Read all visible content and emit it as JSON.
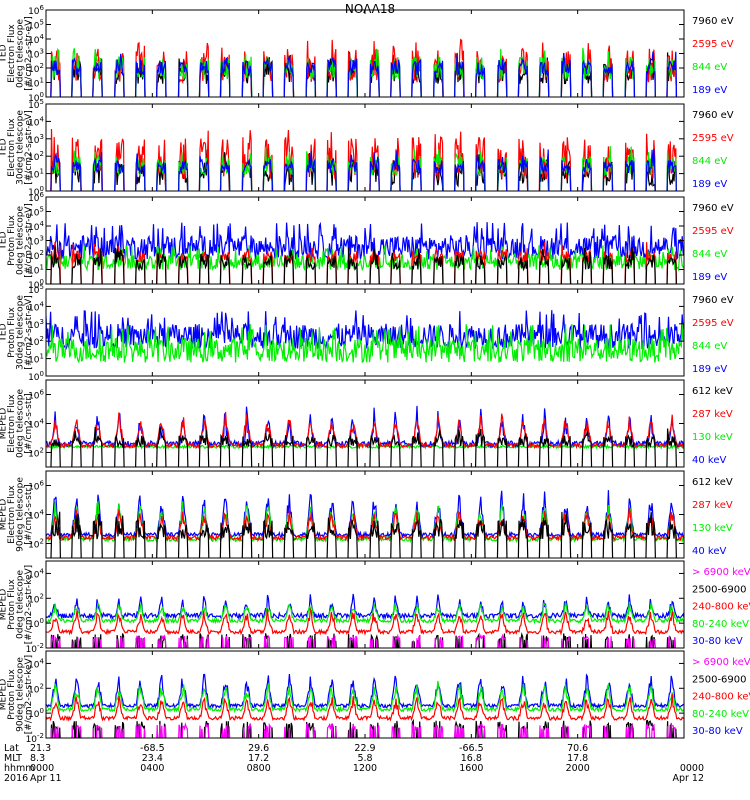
{
  "title": "NOAA18",
  "colors": {
    "black": "#000000",
    "red": "#ff0000",
    "green": "#00ee00",
    "blue": "#0000ff",
    "magenta": "#ff00ff",
    "frame": "#000000"
  },
  "chart_data": {
    "type": "line",
    "x_range_hours": [
      0,
      24
    ],
    "x_ticks_hours": [
      0,
      4,
      8,
      12,
      16,
      20,
      24
    ],
    "footer": {
      "row_labels": [
        "Lat",
        "MLT",
        "hhmm",
        "2016"
      ],
      "columns": [
        {
          "hour": 0,
          "values": [
            "21.3",
            "8.3",
            "0000",
            "Apr 11"
          ]
        },
        {
          "hour": 4,
          "values": [
            "-68.5",
            "23.4",
            "0400",
            ""
          ]
        },
        {
          "hour": 8,
          "values": [
            "29.6",
            "17.2",
            "0800",
            ""
          ]
        },
        {
          "hour": 12,
          "values": [
            "22.9",
            "5.8",
            "1200",
            ""
          ]
        },
        {
          "hour": 16,
          "values": [
            "-66.5",
            "16.8",
            "1600",
            ""
          ]
        },
        {
          "hour": 20,
          "values": [
            "70.6",
            "17.8",
            "2000",
            ""
          ]
        },
        {
          "hour": 24,
          "values": [
            "",
            "",
            "0000",
            "Apr 12"
          ]
        }
      ]
    },
    "panels": [
      {
        "ylabel": [
          "TED",
          "Electron Flux",
          "0deg telescope",
          "[#/cm2-s-str-eV]"
        ],
        "ylim_exp": [
          0,
          6
        ],
        "ticks_exp": [
          0,
          1,
          2,
          3,
          4,
          5,
          6
        ],
        "legend": [
          {
            "label": "7960 eV",
            "color": "black"
          },
          {
            "label": "2595 eV",
            "color": "red"
          },
          {
            "label": "844 eV",
            "color": "green"
          },
          {
            "label": "189 eV",
            "color": "blue"
          }
        ],
        "series": [
          {
            "color": "black",
            "base": 0.9,
            "peak": 2.5,
            "mode": "burst"
          },
          {
            "color": "red",
            "base": 1.0,
            "peak": 3.4,
            "mode": "burst"
          },
          {
            "color": "green",
            "base": 1.2,
            "peak": 2.8,
            "mode": "burst"
          },
          {
            "color": "blue",
            "base": 1.5,
            "peak": 2.6,
            "mode": "burst"
          }
        ]
      },
      {
        "ylabel": [
          "TED",
          "Electron Flux",
          "30deg telescope",
          "[#/cm2-s-str-eV]"
        ],
        "ylim_exp": [
          0,
          5
        ],
        "ticks_exp": [
          0,
          1,
          2,
          3,
          4,
          5
        ],
        "legend": [
          {
            "label": "7960 eV",
            "color": "black"
          },
          {
            "label": "2595 eV",
            "color": "red"
          },
          {
            "label": "844 eV",
            "color": "green"
          },
          {
            "label": "189 eV",
            "color": "blue"
          }
        ],
        "series": [
          {
            "color": "black",
            "base": 0.3,
            "peak": 1.8,
            "mode": "burst"
          },
          {
            "color": "red",
            "base": 0.6,
            "peak": 3.1,
            "mode": "burst"
          },
          {
            "color": "green",
            "base": 0.9,
            "peak": 2.0,
            "mode": "burst"
          },
          {
            "color": "blue",
            "base": 1.0,
            "peak": 1.8,
            "mode": "burst"
          }
        ]
      },
      {
        "ylabel": [
          "TED",
          "Proton Flux",
          "0deg telescope",
          "[#/cm2-s-str-eV]"
        ],
        "ylim_exp": [
          0,
          6
        ],
        "ticks_exp": [
          0,
          1,
          2,
          3,
          4,
          5,
          6
        ],
        "legend": [
          {
            "label": "7960 eV",
            "color": "black"
          },
          {
            "label": "2595 eV",
            "color": "red"
          },
          {
            "label": "844 eV",
            "color": "green"
          },
          {
            "label": "189 eV",
            "color": "blue"
          }
        ],
        "series": [
          {
            "color": "blue",
            "base": 2.2,
            "peak": 4.3,
            "mode": "band"
          },
          {
            "color": "green",
            "base": 1.3,
            "peak": 2.7,
            "mode": "band"
          },
          {
            "color": "red",
            "base": 1.5,
            "peak": 2.3,
            "mode": "burst"
          },
          {
            "color": "black",
            "base": 1.0,
            "peak": 2.0,
            "mode": "burst"
          }
        ]
      },
      {
        "ylabel": [
          "TED",
          "Proton Flux",
          "30deg telescope",
          "[#/cm2-s-str-eV]"
        ],
        "ylim_exp": [
          0,
          5
        ],
        "ticks_exp": [
          0,
          1,
          2,
          3,
          4,
          5
        ],
        "legend": [
          {
            "label": "7960 eV",
            "color": "black"
          },
          {
            "label": "2595 eV",
            "color": "red"
          },
          {
            "label": "844 eV",
            "color": "green"
          },
          {
            "label": "189 eV",
            "color": "blue"
          }
        ],
        "series": [
          {
            "color": "blue",
            "base": 2.0,
            "peak": 3.8,
            "mode": "band"
          },
          {
            "color": "green",
            "base": 1.2,
            "peak": 3.0,
            "mode": "band"
          }
        ]
      },
      {
        "ylabel": [
          "MEPED",
          "Electron Flux",
          "0deg telescope",
          "[#/cm2-s-str]"
        ],
        "ylim_exp": [
          1,
          7
        ],
        "ticks_exp": [
          2,
          4,
          6
        ],
        "legend": [
          {
            "label": "612 keV",
            "color": "black"
          },
          {
            "label": "287 keV",
            "color": "red"
          },
          {
            "label": "130 keV",
            "color": "green"
          },
          {
            "label": "40 keV",
            "color": "blue"
          }
        ],
        "series": [
          {
            "color": "green",
            "base": 2.4,
            "peak": 2.8,
            "mode": "floor"
          },
          {
            "color": "blue",
            "base": 2.6,
            "peak": 5.5,
            "mode": "spike"
          },
          {
            "color": "red",
            "base": 2.5,
            "peak": 4.8,
            "mode": "hump"
          },
          {
            "color": "black",
            "base": 2.4,
            "peak": 3.2,
            "mode": "burst"
          }
        ]
      },
      {
        "ylabel": [
          "MEPED",
          "Electron Flux",
          "90deg telescope",
          "[#/cm2-s-str]"
        ],
        "ylim_exp": [
          1,
          7
        ],
        "ticks_exp": [
          2,
          4,
          6
        ],
        "legend": [
          {
            "label": "612 keV",
            "color": "black"
          },
          {
            "label": "287 keV",
            "color": "red"
          },
          {
            "label": "130 keV",
            "color": "green"
          },
          {
            "label": "40 keV",
            "color": "blue"
          }
        ],
        "series": [
          {
            "color": "blue",
            "base": 2.6,
            "peak": 5.8,
            "mode": "hump"
          },
          {
            "color": "green",
            "base": 2.3,
            "peak": 5.2,
            "mode": "hump"
          },
          {
            "color": "red",
            "base": 2.4,
            "peak": 4.5,
            "mode": "hump"
          },
          {
            "color": "black",
            "base": 2.3,
            "peak": 3.6,
            "mode": "burst"
          }
        ]
      },
      {
        "ylabel": [
          "MEPED",
          "Proton Flux",
          "0deg telescope",
          "[#/cm2-s-str-keV]"
        ],
        "ylim_exp": [
          -2,
          5
        ],
        "ticks_exp": [
          -2,
          0,
          2,
          4
        ],
        "legend": [
          {
            "label": "> 6900 keV",
            "color": "magenta"
          },
          {
            "label": "2500-6900",
            "color": "black"
          },
          {
            "label": "240-800 keV",
            "color": "red"
          },
          {
            "label": "80-240 keV",
            "color": "green"
          },
          {
            "label": "30-80 keV",
            "color": "blue"
          }
        ],
        "series": [
          {
            "color": "blue",
            "base": 0.6,
            "peak": 2.6,
            "mode": "spike"
          },
          {
            "color": "green",
            "base": 0.2,
            "peak": 1.8,
            "mode": "hump"
          },
          {
            "color": "red",
            "base": -0.7,
            "peak": 1.2,
            "mode": "hump"
          },
          {
            "color": "black",
            "base": -1.5,
            "peak": -0.8,
            "mode": "dip"
          },
          {
            "color": "magenta",
            "base": -1.4,
            "peak": -1.0,
            "mode": "dip"
          }
        ]
      },
      {
        "ylabel": [
          "MEPED",
          "Proton Flux",
          "90deg telescope",
          "[#/cm2-s-str-keV]"
        ],
        "ylim_exp": [
          -2,
          5
        ],
        "ticks_exp": [
          -2,
          0,
          2,
          4
        ],
        "legend": [
          {
            "label": "> 6900 keV",
            "color": "magenta"
          },
          {
            "label": "2500-6900",
            "color": "black"
          },
          {
            "label": "240-800 keV",
            "color": "red"
          },
          {
            "label": "80-240 keV",
            "color": "green"
          },
          {
            "label": "30-80 keV",
            "color": "blue"
          }
        ],
        "series": [
          {
            "color": "blue",
            "base": 0.6,
            "peak": 3.4,
            "mode": "hump"
          },
          {
            "color": "green",
            "base": 0.3,
            "peak": 2.6,
            "mode": "hump"
          },
          {
            "color": "red",
            "base": -0.4,
            "peak": 1.5,
            "mode": "hump"
          },
          {
            "color": "black",
            "base": -1.4,
            "peak": -0.6,
            "mode": "dip"
          },
          {
            "color": "magenta",
            "base": -1.3,
            "peak": -0.9,
            "mode": "dip"
          }
        ]
      }
    ]
  }
}
